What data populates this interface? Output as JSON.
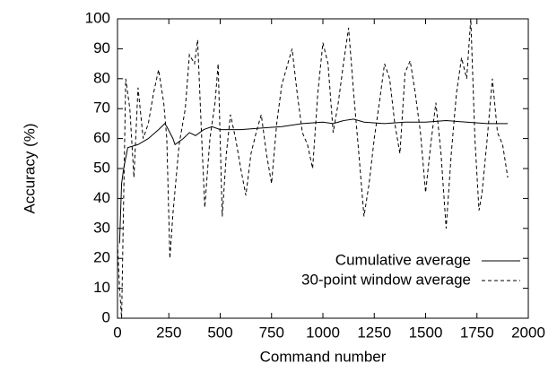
{
  "chart_data": {
    "type": "line",
    "xlabel": "Command number",
    "ylabel": "Accuracy (%)",
    "xlim": [
      0,
      2000
    ],
    "xticks": [
      0,
      250,
      500,
      750,
      1000,
      1250,
      1500,
      1750,
      2000
    ],
    "ylim": [
      0,
      100
    ],
    "yticks": [
      0,
      10,
      20,
      30,
      40,
      50,
      60,
      70,
      80,
      90,
      100
    ],
    "legend": "lower right",
    "series": [
      {
        "name": "Cumulative average",
        "color": "#000000",
        "style": "solid",
        "x": [
          10,
          20,
          30,
          50,
          100,
          150,
          200,
          230,
          240,
          270,
          280,
          320,
          350,
          380,
          420,
          460,
          500,
          600,
          700,
          800,
          900,
          1000,
          1050,
          1100,
          1150,
          1200,
          1300,
          1400,
          1500,
          1600,
          1700,
          1800,
          1900
        ],
        "values": [
          25,
          45,
          50,
          57,
          58,
          60,
          63,
          65,
          64,
          60,
          58,
          60,
          62,
          61,
          63,
          64,
          63,
          63,
          63.5,
          64,
          65,
          65.5,
          65,
          66,
          66.5,
          65.5,
          65,
          65.5,
          65.5,
          66,
          65.5,
          65,
          65
        ]
      },
      {
        "name": "30-point window average",
        "color": "#000000",
        "style": "dashed",
        "x": [
          0,
          10,
          20,
          40,
          60,
          80,
          100,
          125,
          150,
          175,
          200,
          225,
          240,
          255,
          270,
          300,
          330,
          350,
          375,
          390,
          410,
          425,
          450,
          475,
          490,
          510,
          530,
          550,
          575,
          600,
          625,
          650,
          675,
          700,
          725,
          750,
          775,
          800,
          825,
          850,
          875,
          900,
          925,
          950,
          975,
          1000,
          1025,
          1050,
          1075,
          1100,
          1125,
          1150,
          1175,
          1200,
          1225,
          1250,
          1275,
          1300,
          1325,
          1350,
          1375,
          1400,
          1425,
          1450,
          1475,
          1500,
          1525,
          1550,
          1575,
          1600,
          1625,
          1650,
          1675,
          1700,
          1720,
          1740,
          1760,
          1775,
          1800,
          1825,
          1850,
          1875,
          1900
        ],
        "values": [
          25,
          10,
          0,
          80,
          70,
          47,
          77,
          60,
          65,
          75,
          83,
          72,
          60,
          20,
          35,
          58,
          70,
          88,
          85,
          93,
          60,
          37,
          60,
          72,
          85,
          34,
          55,
          68,
          60,
          50,
          41,
          55,
          62,
          68,
          55,
          45,
          65,
          78,
          84,
          90,
          75,
          62,
          58,
          50,
          75,
          92,
          85,
          62,
          72,
          85,
          97,
          75,
          55,
          34,
          45,
          60,
          72,
          85,
          80,
          65,
          55,
          82,
          86,
          75,
          62,
          42,
          58,
          72,
          55,
          30,
          55,
          75,
          87,
          80,
          100,
          60,
          36,
          42,
          60,
          80,
          62,
          58,
          47
        ]
      }
    ]
  }
}
